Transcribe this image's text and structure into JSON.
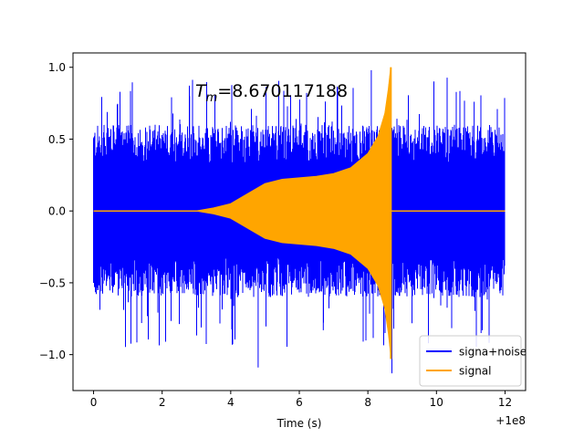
{
  "chart_data": {
    "type": "line",
    "title": "",
    "xlabel": "Time (s)",
    "ylabel": "",
    "xlim": [
      -0.6,
      12.6
    ],
    "ylim": [
      -1.25,
      1.1
    ],
    "x_offset_label": "+1e8",
    "annotation": {
      "prefix": "T",
      "subscript": "m",
      "value": "=8.670117188"
    },
    "x_ticks": [
      {
        "value": 0,
        "label": "0"
      },
      {
        "value": 2,
        "label": "2"
      },
      {
        "value": 4,
        "label": "4"
      },
      {
        "value": 6,
        "label": "6"
      },
      {
        "value": 8,
        "label": "8"
      },
      {
        "value": 10,
        "label": "10"
      },
      {
        "value": 12,
        "label": "12"
      }
    ],
    "y_ticks": [
      {
        "value": -1.0,
        "label": "−1.0"
      },
      {
        "value": -0.5,
        "label": "−0.5"
      },
      {
        "value": 0.0,
        "label": "0.0"
      },
      {
        "value": 0.5,
        "label": "0.5"
      },
      {
        "value": 1.0,
        "label": "1.0"
      }
    ],
    "series": [
      {
        "name": "signa+noise",
        "color": "#0000ff",
        "x_range": [
          0,
          12
        ],
        "noise_band": {
          "typical_max": 0.6,
          "peak_max": 0.98,
          "peak_min": -1.09
        },
        "peaks": [
          {
            "x": 4.8,
            "y": -1.09
          },
          {
            "x": 8.7,
            "y": -1.13
          },
          {
            "x": 8.1,
            "y": 0.98
          },
          {
            "x": 1.4,
            "y": -0.78
          },
          {
            "x": 2.8,
            "y": 0.8
          },
          {
            "x": 11.3,
            "y": -0.85
          },
          {
            "x": 11.1,
            "y": 0.76
          },
          {
            "x": 2.1,
            "y": -0.91
          },
          {
            "x": 6.7,
            "y": -0.83
          }
        ]
      },
      {
        "name": "signal",
        "color": "#ffa500",
        "x_range": [
          0,
          12
        ],
        "merger_time": 8.670117188,
        "envelope": [
          {
            "x": 3.0,
            "y": 0.0
          },
          {
            "x": 3.5,
            "y": 0.02
          },
          {
            "x": 4.0,
            "y": 0.05
          },
          {
            "x": 4.5,
            "y": 0.12
          },
          {
            "x": 5.0,
            "y": 0.19
          },
          {
            "x": 5.5,
            "y": 0.22
          },
          {
            "x": 6.0,
            "y": 0.23
          },
          {
            "x": 6.5,
            "y": 0.24
          },
          {
            "x": 7.0,
            "y": 0.26
          },
          {
            "x": 7.5,
            "y": 0.3
          },
          {
            "x": 8.0,
            "y": 0.4
          },
          {
            "x": 8.3,
            "y": 0.52
          },
          {
            "x": 8.5,
            "y": 0.68
          },
          {
            "x": 8.6,
            "y": 0.85
          },
          {
            "x": 8.67,
            "y": 1.0
          }
        ]
      }
    ],
    "legend": {
      "position": "lower-right",
      "entries": [
        {
          "label": "signa+noise",
          "color": "#0000ff"
        },
        {
          "label": "signal",
          "color": "#ffa500"
        }
      ]
    }
  }
}
